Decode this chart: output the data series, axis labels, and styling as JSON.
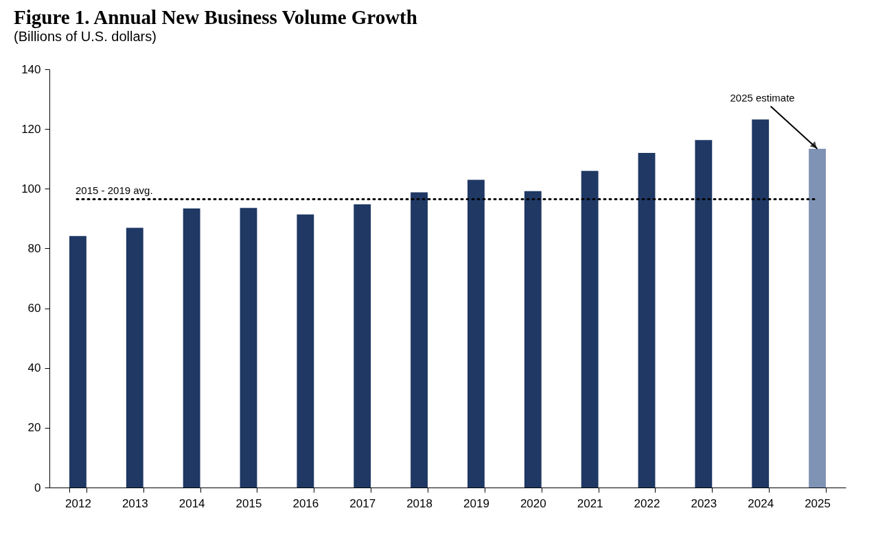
{
  "chart_data": {
    "type": "bar",
    "title": "Figure 1. Annual New Business Volume Growth",
    "subtitle": "(Billions of U.S. dollars)",
    "categories": [
      "2012",
      "2013",
      "2014",
      "2015",
      "2016",
      "2017",
      "2018",
      "2019",
      "2020",
      "2021",
      "2022",
      "2023",
      "2024",
      "2025"
    ],
    "values": [
      84.2,
      86.9,
      93.4,
      93.6,
      91.4,
      94.8,
      98.8,
      103,
      99.2,
      106,
      112,
      116.3,
      123.2,
      113.4
    ],
    "colors": [
      "#1f3864",
      "#1f3864",
      "#1f3864",
      "#1f3864",
      "#1f3864",
      "#1f3864",
      "#1f3864",
      "#1f3864",
      "#1f3864",
      "#1f3864",
      "#1f3864",
      "#1f3864",
      "#1f3864",
      "#7f93b5"
    ],
    "ylim": [
      0,
      140
    ],
    "yticks": [
      0,
      20,
      40,
      60,
      80,
      100,
      120,
      140
    ],
    "grid": false,
    "ref_lines": [
      {
        "axis": "y",
        "value": 96.5,
        "label": "2015 - 2019 avg.",
        "color": "#000000",
        "line_style": "dotted"
      }
    ],
    "annotations": [
      {
        "text": "2025 estimate",
        "x": "2025",
        "y": 113.4
      }
    ]
  }
}
